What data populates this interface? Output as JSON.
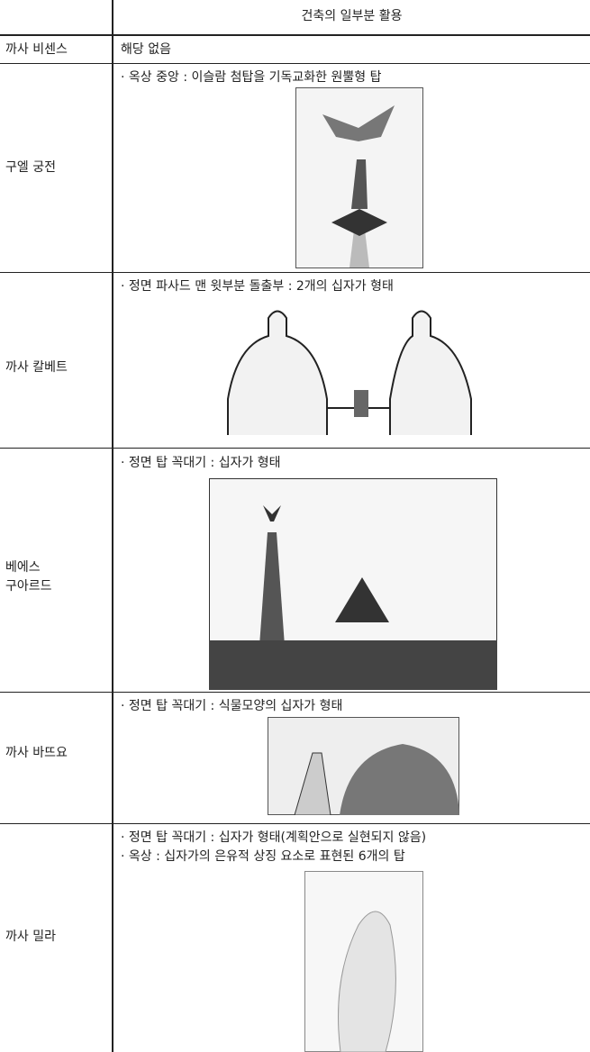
{
  "header": {
    "title": "건축의 일부분 활용"
  },
  "rows": [
    {
      "name": [
        "까사 비센스"
      ],
      "items": [
        "해당 없음"
      ]
    },
    {
      "name": [
        "구엘 궁전"
      ],
      "items": [
        "· 옥상 중앙 : 이슬람 첨탑을 기독교화한 원뿔형 탑"
      ]
    },
    {
      "name": [
        "까사 칼베트"
      ],
      "items": [
        "· 정면 파사드 맨 윗부분 돌출부 : 2개의 십자가 형태"
      ]
    },
    {
      "name": [
        "베에스",
        "구아르드"
      ],
      "items": [
        "· 정면 탑 꼭대기 : 십자가 형태"
      ]
    },
    {
      "name": [
        "까사 바뜨요"
      ],
      "items": [
        "· 정면 탑 꼭대기 : 식물모양의 십자가 형태"
      ]
    },
    {
      "name": [
        "까사 밀라"
      ],
      "items": [
        "· 정면 탑 꼭대기 : 십자가 형태(계획안으로 실현되지 않음)",
        "· 옥상 : 십자가의 은유적 상징 요소로 표현된 6개의 탑"
      ]
    }
  ]
}
